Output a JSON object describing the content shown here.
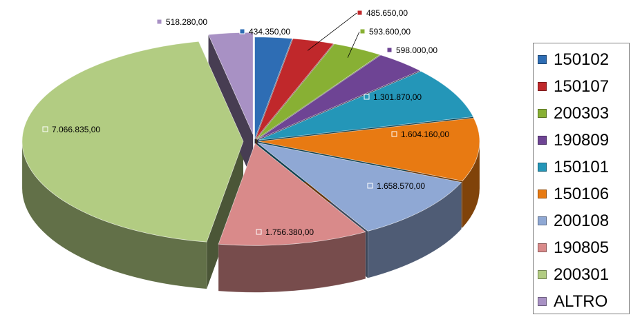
{
  "chart_data": {
    "type": "pie",
    "title": "",
    "legend_position": "right",
    "slices": [
      {
        "name": "150102",
        "value": 434350,
        "label": "434.350,00",
        "color": "#2e6db4"
      },
      {
        "name": "150107",
        "value": 485650,
        "label": "485.650,00",
        "color": "#c0282b"
      },
      {
        "name": "200303",
        "value": 593600,
        "label": "593.600,00",
        "color": "#88b034"
      },
      {
        "name": "190809",
        "value": 598000,
        "label": "598.000,00",
        "color": "#6e4494"
      },
      {
        "name": "150101",
        "value": 1301870,
        "label": "1.301.870,00",
        "color": "#2496b8"
      },
      {
        "name": "150106",
        "value": 1604160,
        "label": "1.604.160,00",
        "color": "#e87a12"
      },
      {
        "name": "200108",
        "value": 1658570,
        "label": "1.658.570,00",
        "color": "#8fa8d4"
      },
      {
        "name": "190805",
        "value": 1756380,
        "label": "1.756.380,00",
        "color": "#d98a8a"
      },
      {
        "name": "200301",
        "value": 7066835,
        "label": "7.066.835,00",
        "color": "#b2cc82"
      },
      {
        "name": "ALTRO",
        "value": 518280,
        "label": "518.280,00",
        "color": "#a891c4"
      }
    ]
  }
}
